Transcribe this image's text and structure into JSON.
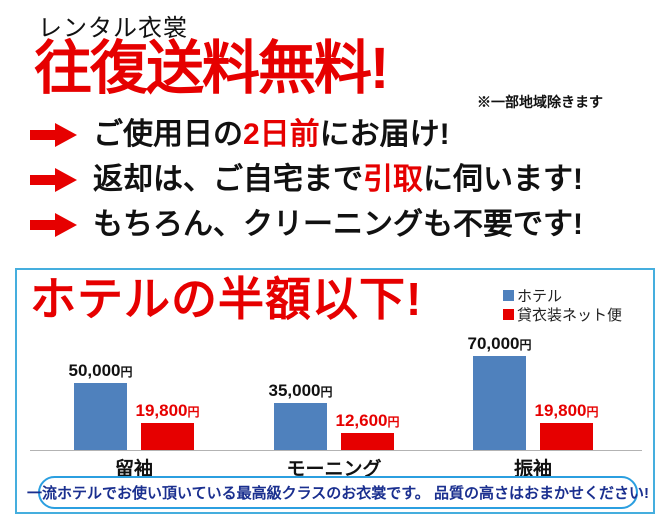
{
  "header": {
    "small_title": "レンタル衣裳",
    "main_title": "往復送料無料!",
    "note": "※一部地域除きます"
  },
  "bullets": [
    {
      "segments": [
        {
          "text": "ご使用日の",
          "emphasis": false
        },
        {
          "text": "2日前",
          "emphasis": true
        },
        {
          "text": "にお届け!",
          "emphasis": false
        }
      ]
    },
    {
      "segments": [
        {
          "text": "返却は、ご自宅まで",
          "emphasis": false
        },
        {
          "text": "引取",
          "emphasis": true
        },
        {
          "text": "に伺います!",
          "emphasis": false
        }
      ]
    },
    {
      "segments": [
        {
          "text": "もちろん、クリーニングも不要です!",
          "emphasis": false
        }
      ]
    }
  ],
  "price_box": {
    "title": "ホテルの半額以下!",
    "footer": "一流ホテルでお使い頂いている最高級クラスのお衣裳です。 品質の高さはおまかせください!"
  },
  "chart_data": {
    "type": "bar",
    "title": "ホテルの半額以下!",
    "categories": [
      "留袖",
      "モーニング",
      "振袖"
    ],
    "series": [
      {
        "name": "ホテル",
        "color": "#4f81bd",
        "values": [
          50000,
          35000,
          70000
        ],
        "value_labels": [
          "50,000",
          "35,000",
          "70,000"
        ]
      },
      {
        "name": "貸衣装ネット便",
        "color": "#e60000",
        "values": [
          19800,
          12600,
          19800
        ],
        "value_labels": [
          "19,800",
          "12,600",
          "19,800"
        ]
      }
    ],
    "unit": "円",
    "ylim": [
      0,
      70000
    ],
    "grid": false,
    "legend_position": "top-right",
    "xlabel": "",
    "ylabel": ""
  },
  "colors": {
    "accent_red": "#e60000",
    "bar_blue": "#4f81bd",
    "box_border": "#45aede",
    "pill_border": "#2b9fe0",
    "pill_text": "#1a2f8f",
    "axis_gray": "#b3b3b3",
    "text_black": "#111111"
  }
}
